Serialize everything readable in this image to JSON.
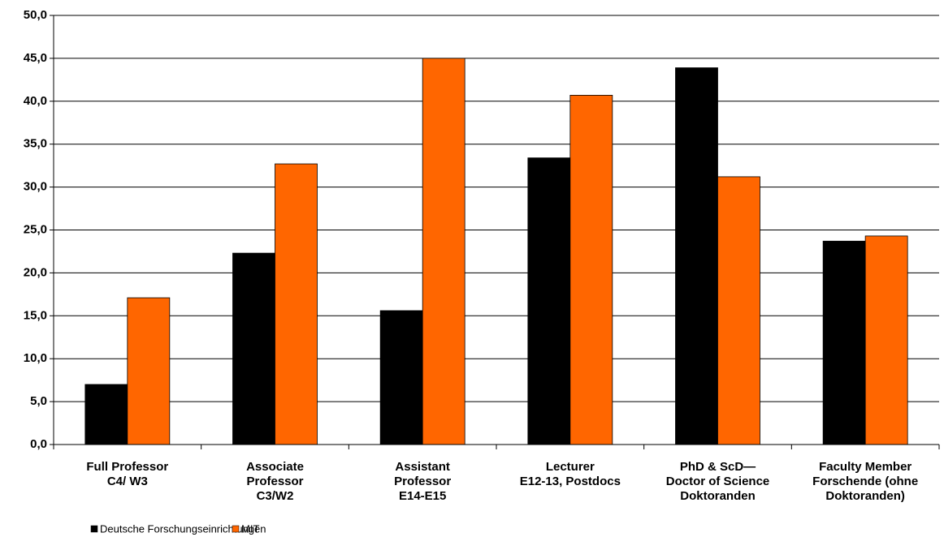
{
  "chart_data": {
    "type": "bar",
    "categories": [
      [
        "Full Professor",
        "C4/ W3"
      ],
      [
        "Associate",
        "Professor",
        "C3/W2"
      ],
      [
        "Assistant",
        "Professor",
        "E14-E15"
      ],
      [
        "Lecturer",
        "E12-13, Postdocs"
      ],
      [
        "PhD & ScD—",
        "Doctor of Science",
        "Doktoranden"
      ],
      [
        "Faculty Member",
        "Forschende (ohne",
        "Doktoranden)"
      ]
    ],
    "series": [
      {
        "name": "Deutsche Forschungseinrichtungen",
        "color": "#000000",
        "values": [
          7.0,
          22.3,
          15.6,
          33.4,
          43.9,
          23.7
        ]
      },
      {
        "name": "MIT",
        "color": "#ff6600",
        "values": [
          17.1,
          32.7,
          45.0,
          40.7,
          31.2,
          24.3
        ]
      }
    ],
    "ylim": [
      0,
      50
    ],
    "yticks": [
      {
        "value": 0,
        "label": "0,0"
      },
      {
        "value": 5,
        "label": "5,0"
      },
      {
        "value": 10,
        "label": "10,0"
      },
      {
        "value": 15,
        "label": "15,0"
      },
      {
        "value": 20,
        "label": "20,0"
      },
      {
        "value": 25,
        "label": "25,0"
      },
      {
        "value": 30,
        "label": "30,0"
      },
      {
        "value": 35,
        "label": "35,0"
      },
      {
        "value": 40,
        "label": "40,0"
      },
      {
        "value": 45,
        "label": "45,0"
      },
      {
        "value": 50,
        "label": "50,0"
      }
    ],
    "grid": true,
    "legend": "bottom-left"
  }
}
